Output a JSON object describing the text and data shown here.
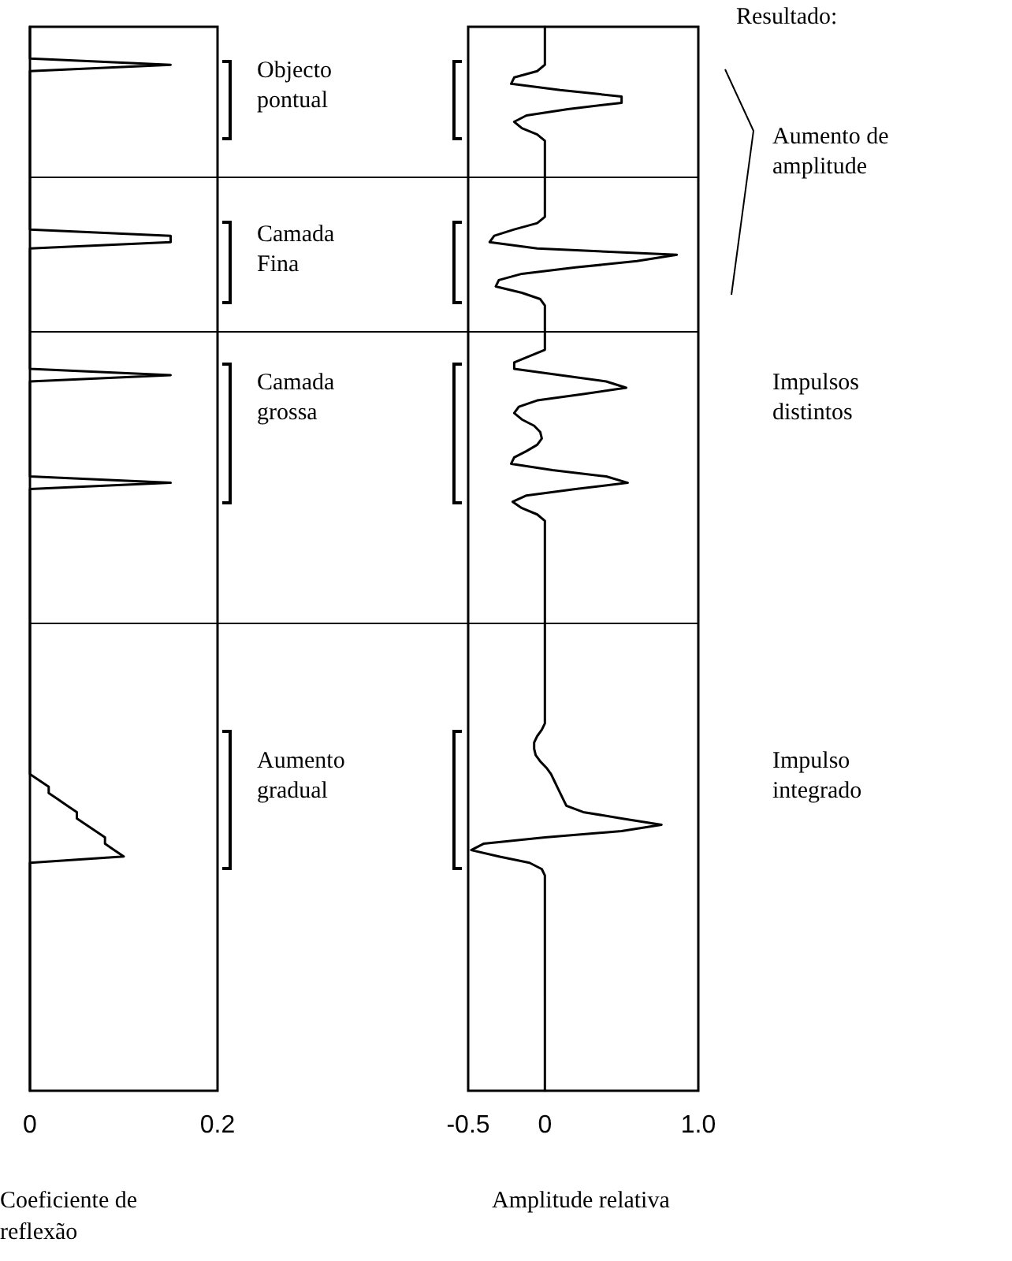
{
  "chart_data": [
    {
      "type": "line",
      "orientation": "horizontal",
      "color": "#000000",
      "xlim": [
        0,
        0.2
      ],
      "xticks": [
        0,
        0.2
      ],
      "tick_labels": "x",
      "xlabel": "Coeficiente de reflexão",
      "annotations": [
        "Objecto pontual",
        "Camada Fina",
        "Camada grossa",
        "Aumento gradual"
      ],
      "categories": [
        null,
        null,
        null,
        null,
        null,
        null,
        null,
        null,
        null,
        null,
        null,
        null,
        null,
        null,
        null,
        null,
        null,
        null,
        null,
        null,
        null,
        null,
        null,
        null,
        null,
        null,
        null,
        null,
        null,
        null,
        null,
        null,
        null,
        null,
        null,
        null,
        null,
        null,
        null,
        null,
        null,
        null,
        null,
        null,
        null,
        null,
        null,
        null,
        null,
        null,
        null,
        null,
        null,
        null,
        null,
        null,
        null,
        null,
        null,
        null,
        null,
        null,
        null,
        null,
        null,
        null,
        null,
        null,
        null,
        null,
        null,
        null,
        null,
        null,
        null,
        null,
        null,
        null,
        null,
        null,
        null,
        null,
        null,
        null,
        null,
        null,
        null,
        null,
        null,
        null,
        null,
        null,
        null,
        null,
        null,
        null,
        null,
        null,
        null,
        null,
        null,
        null,
        null,
        null,
        null,
        null,
        null,
        null,
        null,
        null,
        null,
        null,
        null,
        null,
        null,
        null,
        null,
        null,
        null,
        null,
        null,
        null,
        null,
        null,
        null,
        null,
        null,
        null,
        null,
        null,
        null,
        null,
        null,
        null,
        null,
        null,
        null,
        null,
        null,
        null,
        null,
        null,
        null,
        null,
        null,
        null,
        null,
        null,
        null,
        null,
        null,
        null,
        null,
        null,
        null,
        null,
        null,
        null,
        null,
        null,
        null,
        null,
        null,
        null,
        null,
        null,
        null,
        null,
        null
      ],
      "values": [
        0,
        0,
        0,
        0,
        0,
        0,
        0.15,
        0,
        0,
        0,
        0,
        0,
        0,
        0,
        0,
        0,
        0,
        0,
        0,
        0,
        0,
        0,
        0,
        0,
        0,
        0,
        0,
        0,
        0,
        0,
        0,
        0,
        0,
        0.15,
        0.15,
        0,
        0,
        0,
        0,
        0,
        0,
        0,
        0,
        0,
        0,
        0,
        0,
        0,
        0,
        0,
        0,
        0,
        0,
        0,
        0,
        0.15,
        0,
        0,
        0,
        0,
        0,
        0,
        0,
        0,
        0,
        0,
        0,
        0,
        0,
        0,
        0,
        0,
        0.15,
        0,
        0,
        0,
        0,
        0,
        0,
        0,
        0,
        0,
        0,
        0,
        0,
        0,
        0,
        0,
        0,
        0,
        0,
        0,
        0,
        0,
        0,
        0,
        0,
        0,
        0,
        0,
        0,
        0,
        0,
        0,
        0,
        0,
        0,
        0,
        0,
        0,
        0,
        0,
        0,
        0,
        0,
        0,
        0,
        0,
        0,
        0.01,
        0.02,
        0.02,
        0.03,
        0.04,
        0.05,
        0.05,
        0.06,
        0.07,
        0.08,
        0.08,
        0.09,
        0.1,
        0,
        0,
        0,
        0,
        0,
        0,
        0,
        0,
        0,
        0,
        0,
        0,
        0,
        0,
        0,
        0,
        0,
        0,
        0,
        0,
        0,
        0,
        0,
        0,
        0,
        0,
        0,
        0,
        0,
        0,
        0,
        0,
        0,
        0,
        0,
        0,
        0
      ]
    },
    {
      "type": "line",
      "orientation": "horizontal",
      "color": "#000000",
      "xlim": [
        -0.5,
        1.0
      ],
      "xticks": [
        -0.5,
        0,
        {
          "value": 1,
          "label": "1.0"
        }
      ],
      "tick_labels": "x",
      "xlabel": "Amplitude relativa",
      "annotations": [
        "Resultado:",
        "Aumento de amplitude",
        "Impulsos distintos",
        "Impulso integrado"
      ],
      "categories": [
        null,
        null,
        null,
        null,
        null,
        null,
        null,
        null,
        null,
        null,
        null,
        null,
        null,
        null,
        null,
        null,
        null,
        null,
        null,
        null,
        null,
        null,
        null,
        null,
        null,
        null,
        null,
        null,
        null,
        null,
        null,
        null,
        null,
        null,
        null,
        null,
        null,
        null,
        null,
        null,
        null,
        null,
        null,
        null,
        null,
        null,
        null,
        null,
        null,
        null,
        null,
        null,
        null,
        null,
        null,
        null,
        null,
        null,
        null,
        null,
        null,
        null,
        null,
        null,
        null,
        null,
        null,
        null,
        null,
        null,
        null,
        null,
        null,
        null,
        null,
        null,
        null,
        null,
        null,
        null,
        null,
        null,
        null,
        null,
        null,
        null,
        null,
        null,
        null,
        null,
        null,
        null,
        null,
        null,
        null,
        null,
        null,
        null,
        null,
        null,
        null,
        null,
        null,
        null,
        null,
        null,
        null,
        null,
        null,
        null,
        null,
        null,
        null,
        null,
        null,
        null,
        null,
        null,
        null,
        null,
        null,
        null,
        null,
        null,
        null,
        null,
        null,
        null,
        null,
        null,
        null,
        null,
        null,
        null,
        null,
        null,
        null,
        null,
        null,
        null,
        null,
        null,
        null,
        null,
        null,
        null,
        null,
        null,
        null,
        null,
        null,
        null,
        null,
        null,
        null,
        null,
        null,
        null,
        null,
        null,
        null,
        null,
        null,
        null,
        null,
        null,
        null,
        null,
        null
      ],
      "values": [
        0,
        0,
        0,
        0,
        0,
        0,
        0,
        -0.05,
        -0.2,
        -0.22,
        0.1,
        0.5,
        0.5,
        0.15,
        -0.12,
        -0.2,
        -0.15,
        -0.05,
        0,
        0,
        0,
        0,
        0,
        0,
        0,
        0,
        0,
        0,
        0,
        0,
        0,
        -0.05,
        -0.2,
        -0.33,
        -0.36,
        -0.05,
        0.86,
        0.6,
        0.2,
        -0.15,
        -0.3,
        -0.32,
        -0.15,
        -0.03,
        0,
        0,
        0,
        0,
        0,
        0,
        0,
        0,
        -0.1,
        -0.2,
        -0.2,
        0.1,
        0.4,
        0.53,
        0.25,
        -0.05,
        -0.17,
        -0.2,
        -0.15,
        -0.07,
        -0.03,
        -0.02,
        -0.05,
        -0.12,
        -0.2,
        -0.22,
        0.05,
        0.4,
        0.54,
        0.2,
        -0.12,
        -0.21,
        -0.15,
        -0.05,
        0,
        0,
        0,
        0,
        0,
        0,
        0,
        0,
        0,
        0,
        0,
        0,
        0,
        0,
        0,
        0,
        0,
        0,
        0,
        0,
        0,
        0,
        0,
        0,
        0,
        0,
        0,
        0,
        0,
        0,
        0,
        0,
        0,
        -0.02,
        -0.05,
        -0.07,
        -0.07,
        -0.06,
        -0.03,
        0.01,
        0.04,
        0.06,
        0.08,
        0.1,
        0.12,
        0.14,
        0.25,
        0.5,
        0.76,
        0.5,
        0,
        -0.4,
        -0.48,
        -0.3,
        -0.1,
        -0.02,
        0,
        0,
        0,
        0,
        0,
        0,
        0,
        0,
        0,
        0,
        0,
        0,
        0,
        0,
        0,
        0,
        0,
        0,
        0,
        0,
        0,
        0,
        0,
        0,
        0,
        0,
        0,
        0,
        0,
        0,
        0,
        0,
        0,
        0,
        0
      ]
    }
  ]
}
